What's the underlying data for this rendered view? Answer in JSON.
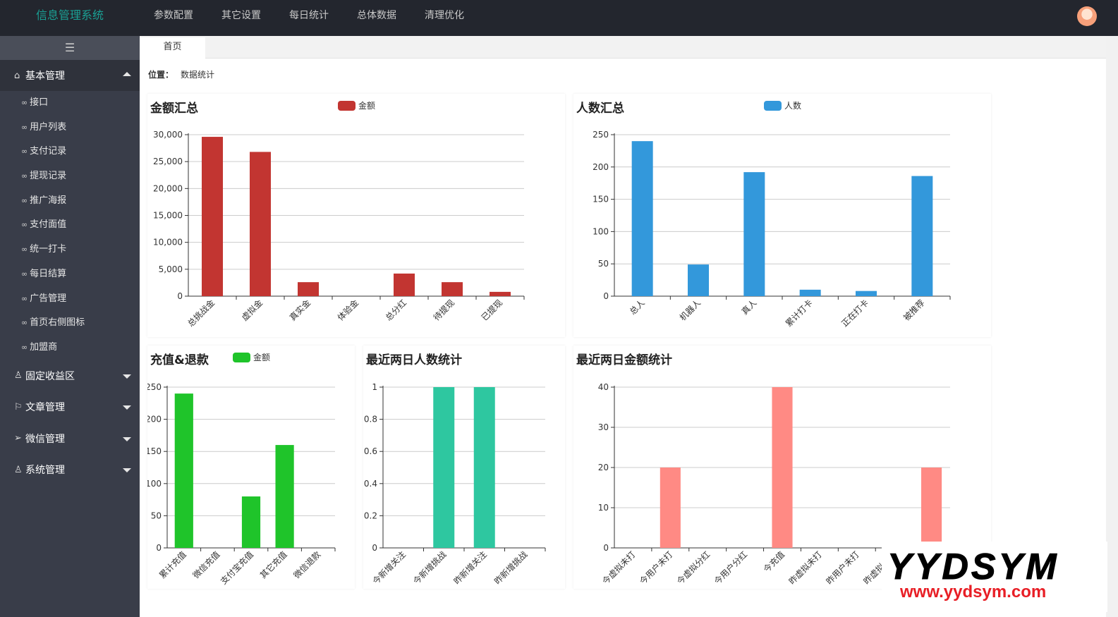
{
  "app": {
    "title": "信息管理系统"
  },
  "topnav": [
    "参数配置",
    "其它设置",
    "每日统计",
    "总体数据",
    "清理优化"
  ],
  "sidebar": {
    "toggle_icon": "☰",
    "open_group": {
      "label": "基本管理",
      "icon": "home-icon"
    },
    "items": [
      "接口",
      "用户列表",
      "支付记录",
      "提现记录",
      "推广海报",
      "支付面值",
      "统一打卡",
      "每日结算",
      "广告管理",
      "首页右侧图标",
      "加盟商"
    ],
    "groups": [
      {
        "label": "固定收益区",
        "icon": "user-icon"
      },
      {
        "label": "文章管理",
        "icon": "flag-icon"
      },
      {
        "label": "微信管理",
        "icon": "send-icon"
      },
      {
        "label": "系统管理",
        "icon": "person-icon"
      }
    ]
  },
  "tabs": [
    "首页"
  ],
  "breadcrumb": {
    "label": "位置：",
    "value": "数据统计"
  },
  "watermark": {
    "big": "YYDSYM",
    "small": "www.yydsym.com"
  },
  "chart_data": [
    {
      "type": "bar",
      "title": "金额汇总",
      "legend": "金额",
      "color": "#c23531",
      "categories": [
        "总挑战金",
        "虚拟金",
        "真实金",
        "体验金",
        "总分红",
        "待提现",
        "已提现"
      ],
      "values": [
        29600,
        26800,
        2600,
        0,
        4200,
        2600,
        800
      ],
      "ylim": [
        0,
        30000
      ],
      "yticks": [
        "0",
        "5,000",
        "10,000",
        "15,000",
        "20,000",
        "25,000",
        "30,000"
      ],
      "ystep": 5000
    },
    {
      "type": "bar",
      "title": "人数汇总",
      "legend": "人数",
      "color": "#3398db",
      "categories": [
        "总人",
        "机器人",
        "真人",
        "累计打卡",
        "正在打卡",
        "被推荐"
      ],
      "values": [
        240,
        49,
        192,
        10,
        8,
        186
      ],
      "ylim": [
        0,
        250
      ],
      "yticks": [
        "0",
        "50",
        "100",
        "150",
        "200",
        "250"
      ],
      "ystep": 50
    },
    {
      "type": "bar",
      "title": "充值&退款",
      "legend": "金额",
      "color": "#1fc42a",
      "categories": [
        "累计充值",
        "微信充值",
        "支付宝充值",
        "其它充值",
        "微信退款"
      ],
      "values": [
        240,
        0,
        80,
        160,
        0
      ],
      "ylim": [
        0,
        250
      ],
      "yticks": [
        "0",
        "50",
        "100",
        "150",
        "200",
        "250"
      ],
      "ystep": 50
    },
    {
      "type": "bar",
      "title": "最近两日人数统计",
      "legend": "",
      "color": "#2ec7a0",
      "categories": [
        "今新增关注",
        "今新增挑战",
        "昨新增关注",
        "昨新增挑战"
      ],
      "values": [
        0,
        1,
        1,
        0
      ],
      "ylim": [
        0,
        1
      ],
      "yticks": [
        "0",
        "0.2",
        "0.4",
        "0.6",
        "0.8",
        "1"
      ],
      "ystep": 0.2
    },
    {
      "type": "bar",
      "title": "最近两日金额统计",
      "legend": "",
      "color": "#ff8a84",
      "categories": [
        "今虚拟未打",
        "今用户未打",
        "今虚拟分红",
        "今用户分红",
        "今充值",
        "昨虚拟未打",
        "昨用户未打",
        "昨虚拟分红",
        "昨用户分红"
      ],
      "values": [
        0,
        20,
        0,
        0,
        40,
        0,
        0,
        0,
        20
      ],
      "ylim": [
        0,
        40
      ],
      "yticks": [
        "0",
        "10",
        "20",
        "30",
        "40"
      ],
      "ystep": 10
    }
  ]
}
